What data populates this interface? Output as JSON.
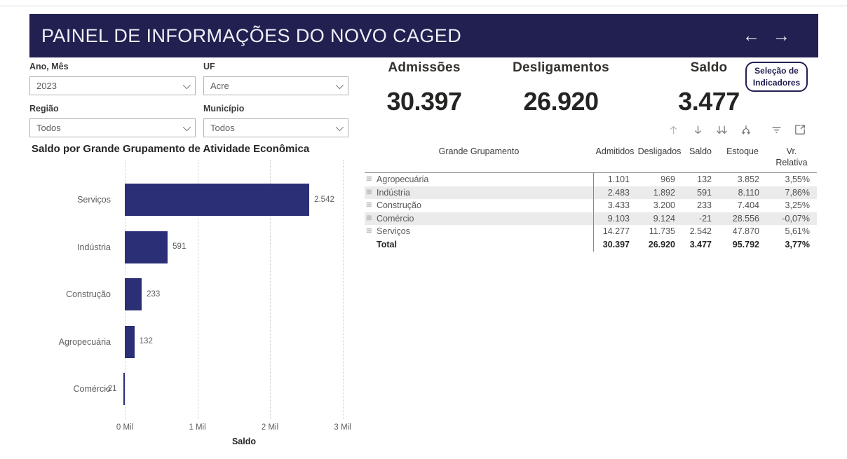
{
  "header": {
    "title": "PAINEL DE INFORMAÇÕES DO NOVO CAGED",
    "back_arrow": "←",
    "forward_arrow": "→"
  },
  "filters": [
    {
      "label": "Ano, Mês",
      "value": "2023"
    },
    {
      "label": "UF",
      "value": "Acre"
    },
    {
      "label": "Região",
      "value": "Todos"
    },
    {
      "label": "Município",
      "value": "Todos"
    }
  ],
  "kpis": [
    {
      "label": "Admissões",
      "value": "30.397"
    },
    {
      "label": "Desligamentos",
      "value": "26.920"
    },
    {
      "label": "Saldo",
      "value": "3.477"
    }
  ],
  "indicator_button": {
    "line1": "Seleção de",
    "line2": "Indicadores"
  },
  "toolbar_icons": [
    {
      "name": "drill-up-icon",
      "disabled": true
    },
    {
      "name": "drill-down-icon",
      "disabled": false
    },
    {
      "name": "go-to-next-level-icon",
      "disabled": false
    },
    {
      "name": "expand-all-icon",
      "disabled": false
    },
    {
      "name": "filter-icon",
      "disabled": false
    },
    {
      "name": "focus-mode-icon",
      "disabled": false
    }
  ],
  "table": {
    "columns": [
      "Grande Grupamento",
      "Admitidos",
      "Desligados",
      "Saldo",
      "Estoque",
      "Vr. Relativa"
    ],
    "rows": [
      {
        "name": "Agropecuária",
        "cells": [
          "1.101",
          "969",
          "132",
          "3.852",
          "3,55%"
        ],
        "expandable": true,
        "total": false
      },
      {
        "name": "Indústria",
        "cells": [
          "2.483",
          "1.892",
          "591",
          "8.110",
          "7,86%"
        ],
        "expandable": true,
        "total": false
      },
      {
        "name": "Construção",
        "cells": [
          "3.433",
          "3.200",
          "233",
          "7.404",
          "3,25%"
        ],
        "expandable": true,
        "total": false
      },
      {
        "name": "Comércio",
        "cells": [
          "9.103",
          "9.124",
          "-21",
          "28.556",
          "-0,07%"
        ],
        "expandable": true,
        "total": false
      },
      {
        "name": "Serviços",
        "cells": [
          "14.277",
          "11.735",
          "2.542",
          "47.870",
          "5,61%"
        ],
        "expandable": true,
        "total": false
      },
      {
        "name": "Total",
        "cells": [
          "30.397",
          "26.920",
          "3.477",
          "95.792",
          "3,77%"
        ],
        "expandable": false,
        "total": true
      }
    ]
  },
  "chart_data": {
    "type": "bar",
    "orientation": "horizontal",
    "title": "Saldo por Grande Grupamento de Atividade Econômica",
    "categories": [
      "Serviços",
      "Indústria",
      "Construção",
      "Agropecuária",
      "Comércio"
    ],
    "values": [
      2542,
      591,
      233,
      132,
      -21
    ],
    "value_labels": [
      "2.542",
      "591",
      "233",
      "132",
      "-21"
    ],
    "xlabel": "Saldo",
    "ylabel": "",
    "x_ticks": [
      {
        "value": 0,
        "label": "0 Mil"
      },
      {
        "value": 1000,
        "label": "1 Mil"
      },
      {
        "value": 2000,
        "label": "2 Mil"
      },
      {
        "value": 3000,
        "label": "3 Mil"
      }
    ],
    "xlim": [
      -150,
      3150
    ],
    "grid": "dotted-vertical",
    "legend": "none",
    "bar_color": "#2b2f76"
  },
  "colors": {
    "banner_bg": "#212050",
    "accent_navy": "#212050",
    "bar_fill": "#2b2f76",
    "stripe": "#ebebeb",
    "text_dark": "#252423",
    "text_gray": "#605e5c"
  }
}
